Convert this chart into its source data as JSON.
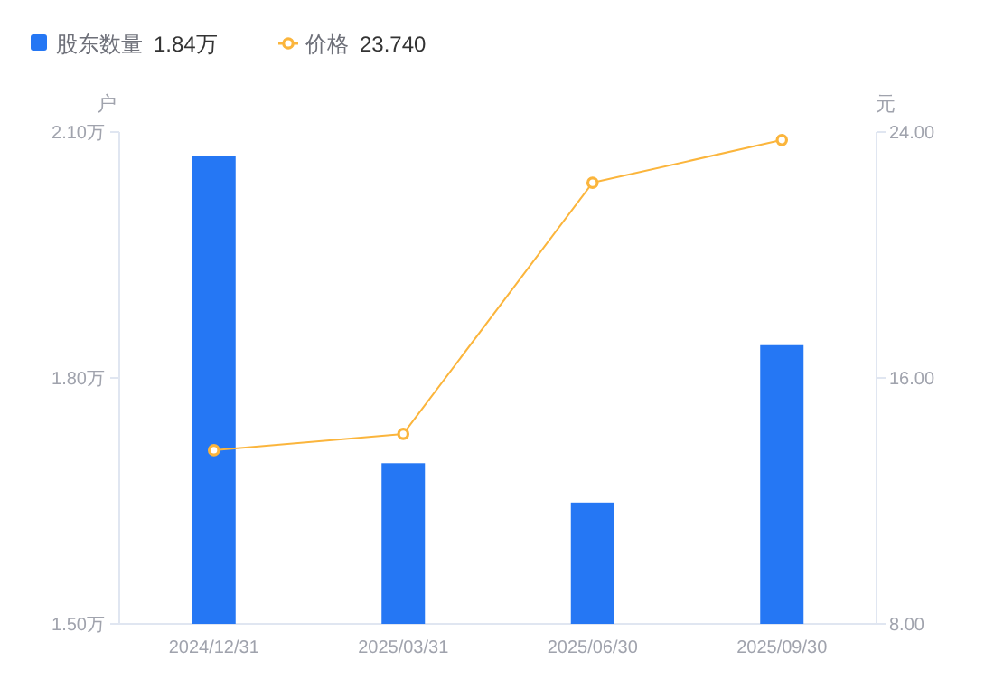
{
  "chart_data": {
    "type": "bar",
    "categories": [
      "2024/12/31",
      "2025/03/31",
      "2025/06/30",
      "2025/09/30"
    ],
    "series": [
      {
        "name": "股东数量",
        "color": "#2577f4",
        "values": [
          2.071,
          1.696,
          1.648,
          1.84
        ]
      },
      {
        "name": "价格",
        "type": "line",
        "axis": "y2",
        "color": "#fbb53c",
        "marker": "circle",
        "values": [
          13.65,
          14.18,
          22.35,
          23.74
        ]
      }
    ],
    "ylabel": "户",
    "y2label": "元",
    "ylim": [
      1.5,
      2.1
    ],
    "yticks": [
      {
        "value": 1.5,
        "label": "1.50万"
      },
      {
        "value": 1.8,
        "label": "1.80万"
      },
      {
        "value": 2.1,
        "label": "2.10万"
      }
    ],
    "y2lim": [
      8,
      24
    ],
    "y2ticks": [
      {
        "value": 8,
        "label": "8.00"
      },
      {
        "value": 16,
        "label": "16.00"
      },
      {
        "value": 24,
        "label": "24.00"
      }
    ],
    "annotations": [
      "1.84万",
      "23.740"
    ],
    "legend": "top left",
    "grid": false
  }
}
